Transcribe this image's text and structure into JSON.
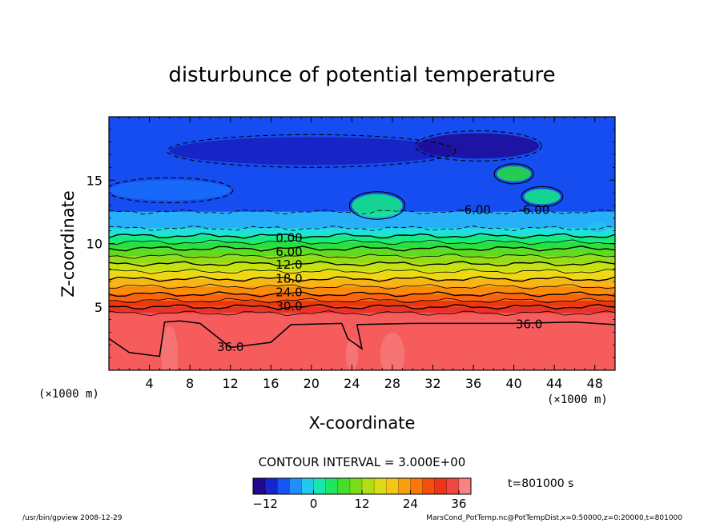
{
  "chart_data": {
    "type": "heatmap",
    "title": "disturbunce of potential temperature",
    "xlabel": "X-coordinate",
    "ylabel": "Z-coordinate",
    "x_unit_left": "(×1000 m)",
    "x_unit_right": "(×1000 m)",
    "xlim": [
      0,
      50
    ],
    "ylim": [
      0,
      20
    ],
    "x_ticks": [
      4,
      8,
      12,
      16,
      20,
      24,
      28,
      32,
      36,
      40,
      44,
      48
    ],
    "x_tick_labels": [
      "4",
      "8",
      "12",
      "16",
      "20",
      "24",
      "28",
      "32",
      "36",
      "40",
      "44",
      "48"
    ],
    "y_ticks": [
      5,
      10,
      15
    ],
    "y_tick_labels": [
      "5",
      "10",
      "15"
    ],
    "contour_labels": [
      {
        "text": "0.00",
        "x": 17.8,
        "z": 10.5
      },
      {
        "text": "6.00",
        "x": 17.8,
        "z": 9.4
      },
      {
        "text": "12.0",
        "x": 17.8,
        "z": 8.4
      },
      {
        "text": "18.0",
        "x": 17.8,
        "z": 7.3
      },
      {
        "text": "24.0",
        "x": 17.8,
        "z": 6.2
      },
      {
        "text": "30.0",
        "x": 17.8,
        "z": 5.1
      },
      {
        "text": "-6.00",
        "x": 36.2,
        "z": 12.7
      },
      {
        "text": "-6.00",
        "x": 42.0,
        "z": 12.7
      },
      {
        "text": "36.0",
        "x": 41.5,
        "z": 3.7
      },
      {
        "text": "36.0",
        "x": 12.0,
        "z": 1.9
      }
    ],
    "bands": [
      {
        "z0": 0,
        "z1": 4.5,
        "value": 36
      },
      {
        "z0": 4.5,
        "z1": 5.0,
        "value": 33
      },
      {
        "z0": 5.0,
        "z1": 5.5,
        "value": 30
      },
      {
        "z0": 5.5,
        "z1": 6.0,
        "value": 27
      },
      {
        "z0": 6.0,
        "z1": 6.6,
        "value": 24
      },
      {
        "z0": 6.6,
        "z1": 7.2,
        "value": 21
      },
      {
        "z0": 7.2,
        "z1": 7.8,
        "value": 18
      },
      {
        "z0": 7.8,
        "z1": 8.4,
        "value": 15
      },
      {
        "z0": 8.4,
        "z1": 9.0,
        "value": 12
      },
      {
        "z0": 9.0,
        "z1": 9.6,
        "value": 9
      },
      {
        "z0": 9.6,
        "z1": 10.1,
        "value": 6
      },
      {
        "z0": 10.1,
        "z1": 10.6,
        "value": 3
      },
      {
        "z0": 10.6,
        "z1": 11.2,
        "value": 0
      },
      {
        "z0": 11.2,
        "z1": 12.5,
        "value": -3
      },
      {
        "z0": 12.5,
        "z1": 20,
        "value": -8
      }
    ],
    "colorbar": {
      "min": -15,
      "max": 39,
      "step": 3,
      "ticks": [
        -12,
        0,
        12,
        24,
        36
      ],
      "tick_labels": [
        "−12",
        "0",
        "12",
        "24",
        "36"
      ]
    },
    "contour_interval_text": "CONTOUR INTERVAL = 3.000E+00",
    "time_text": "t=801000 s"
  },
  "footer": {
    "program": "/usr/bin/gpview   2008-12-29",
    "source": "MarsCond_PotTemp.nc@PotTempDist,x=0:50000,z=0:20000,t=801000"
  }
}
